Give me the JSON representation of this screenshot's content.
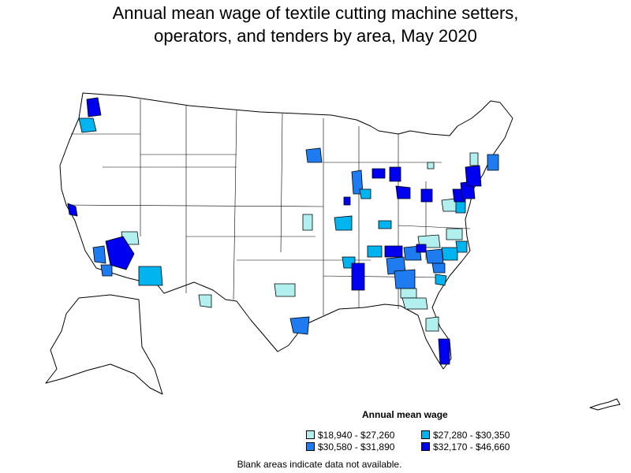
{
  "title_line1": "Annual mean wage of textile cutting machine setters,",
  "title_line2": "operators, and tenders by area, May 2020",
  "legend": {
    "title": "Annual mean wage",
    "items": [
      {
        "label": "$18,940 - $27,260",
        "color": "#b2f0f0"
      },
      {
        "label": "$27,280 - $30,350",
        "color": "#00b4f0"
      },
      {
        "label": "$30,580 - $31,890",
        "color": "#1e7cf0"
      },
      {
        "label": "$32,170 - $46,660",
        "color": "#0000f0"
      }
    ]
  },
  "note": "Blank areas indicate data not available."
}
